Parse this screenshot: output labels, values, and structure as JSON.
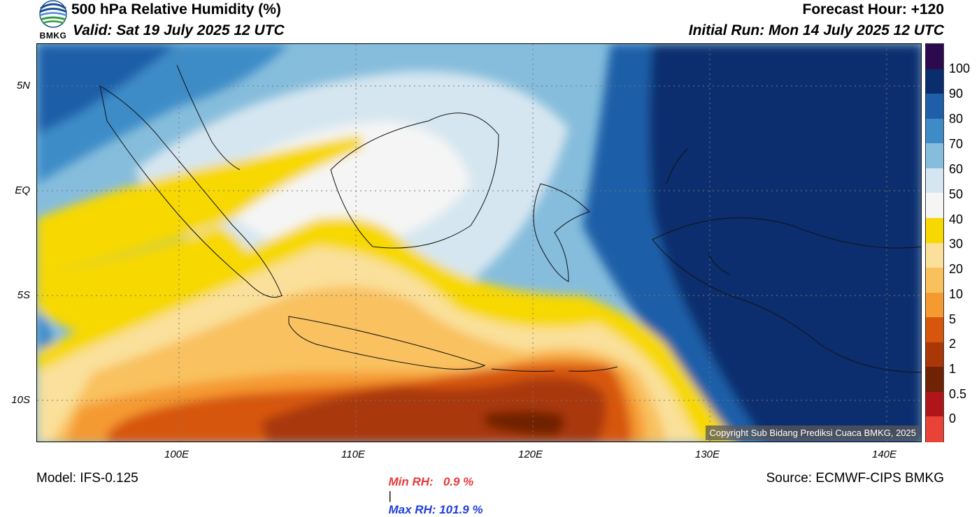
{
  "header": {
    "title": "500 hPa Relative Humidity (%)",
    "valid": "Valid: Sat 19 July 2025 12 UTC",
    "forecast_hour": "Forecast Hour: +120",
    "initial_run": "Initial Run: Mon 14 July 2025 12 UTC"
  },
  "logo": {
    "text": "BMKG",
    "icon": "bmkg-logo-icon"
  },
  "map": {
    "lat_ticks": [
      "5N",
      "EQ",
      "5S",
      "10S"
    ],
    "lon_ticks": [
      "100E",
      "110E",
      "120E",
      "130E",
      "140E"
    ],
    "copyright": "Copyright Sub Bidang Prediksi Cuaca BMKG, 2025"
  },
  "colorbar": {
    "labels": [
      "100",
      "90",
      "80",
      "70",
      "60",
      "50",
      "40",
      "30",
      "20",
      "10",
      "5",
      "2",
      "1",
      "0.5",
      "0"
    ],
    "colors": [
      "#2d0a4e",
      "#0a2d6e",
      "#1e5fa8",
      "#3d8cc8",
      "#86bddc",
      "#d6e6f0",
      "#f5f5f5",
      "#f7d800",
      "#fae09a",
      "#f9c15e",
      "#f59a30",
      "#d7560e",
      "#a93707",
      "#6f2204",
      "#b0151a",
      "#e84336"
    ]
  },
  "stats": {
    "min_label": "Min RH:   0.9 %",
    "separator": "|",
    "max_label": "Max RH: 101.9 %",
    "min_color": "#e8393a",
    "max_color": "#1f3fdc"
  },
  "footer": {
    "model": "Model: IFS-0.125",
    "source": "Source: ECMWF-CIPS BMKG"
  }
}
